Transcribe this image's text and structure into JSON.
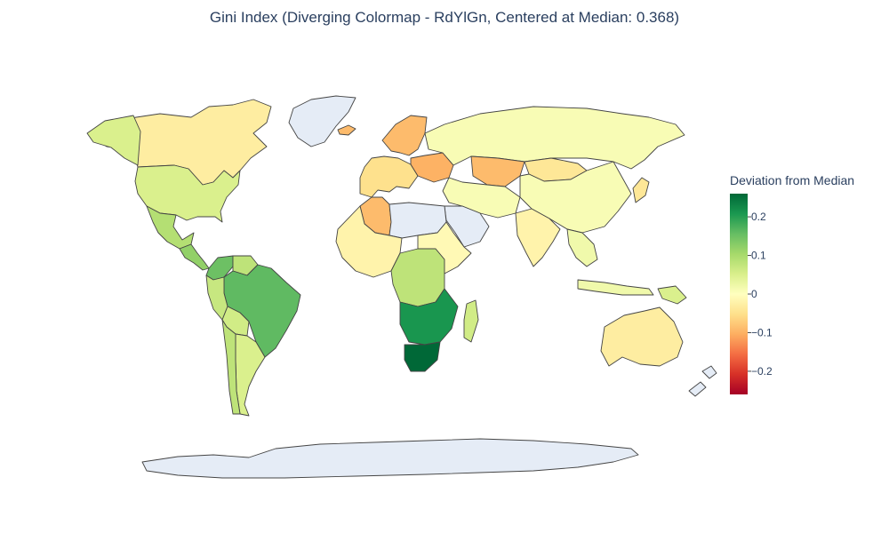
{
  "title": "Gini Index (Diverging Colormap - RdYlGn, Centered at Median: 0.368)",
  "colorbar": {
    "title": "Deviation from Median",
    "range": [
      -0.26,
      0.26
    ],
    "ticks": [
      {
        "value": 0.2,
        "label": "0.2"
      },
      {
        "value": 0.1,
        "label": "0.1"
      },
      {
        "value": 0,
        "label": "0"
      },
      {
        "value": -0.1,
        "label": "−0.1"
      },
      {
        "value": -0.2,
        "label": "−0.2"
      }
    ],
    "colorscale": [
      "#a50026",
      "#d73027",
      "#f46d43",
      "#fdae61",
      "#fee08b",
      "#ffffbf",
      "#d9ef8b",
      "#a6d96a",
      "#66bd63",
      "#1a9850",
      "#006837"
    ]
  },
  "colors": {
    "no_data": "#e5ecf6",
    "border": "#444444"
  },
  "regions": [
    {
      "name": "Canada",
      "deviation": -0.03
    },
    {
      "name": "United States",
      "deviation": 0.05
    },
    {
      "name": "Alaska",
      "deviation": 0.05
    },
    {
      "name": "Greenland",
      "deviation": null
    },
    {
      "name": "Mexico",
      "deviation": 0.09
    },
    {
      "name": "Central America",
      "deviation": 0.12
    },
    {
      "name": "Colombia",
      "deviation": 0.15
    },
    {
      "name": "Venezuela",
      "deviation": 0.08
    },
    {
      "name": "Brazil",
      "deviation": 0.16
    },
    {
      "name": "Peru",
      "deviation": 0.07
    },
    {
      "name": "Bolivia",
      "deviation": 0.06
    },
    {
      "name": "Argentina",
      "deviation": 0.05
    },
    {
      "name": "Chile",
      "deviation": 0.08
    },
    {
      "name": "Iceland",
      "deviation": -0.09
    },
    {
      "name": "Scandinavia",
      "deviation": -0.09
    },
    {
      "name": "Western Europe",
      "deviation": -0.05
    },
    {
      "name": "Eastern Europe",
      "deviation": -0.1
    },
    {
      "name": "Russia",
      "deviation": 0.01
    },
    {
      "name": "Kazakhstan",
      "deviation": -0.09
    },
    {
      "name": "Mongolia",
      "deviation": -0.04
    },
    {
      "name": "China",
      "deviation": 0.01
    },
    {
      "name": "India",
      "deviation": -0.02
    },
    {
      "name": "Middle East",
      "deviation": 0.01
    },
    {
      "name": "Arabian Peninsula",
      "deviation": null
    },
    {
      "name": "Southeast Asia",
      "deviation": 0.02
    },
    {
      "name": "Japan",
      "deviation": -0.04
    },
    {
      "name": "Indonesia",
      "deviation": 0.02
    },
    {
      "name": "Papua New Guinea",
      "deviation": 0.05
    },
    {
      "name": "Australia",
      "deviation": -0.03
    },
    {
      "name": "New Zealand",
      "deviation": null
    },
    {
      "name": "Algeria",
      "deviation": -0.09
    },
    {
      "name": "North Africa",
      "deviation": null
    },
    {
      "name": "West Africa",
      "deviation": -0.02
    },
    {
      "name": "Central Africa",
      "deviation": 0.08
    },
    {
      "name": "Horn of Africa",
      "deviation": -0.01
    },
    {
      "name": "Southern Africa",
      "deviation": 0.21
    },
    {
      "name": "South Africa",
      "deviation": 0.26
    },
    {
      "name": "Madagascar",
      "deviation": 0.06
    },
    {
      "name": "Antarctica",
      "deviation": null
    }
  ]
}
